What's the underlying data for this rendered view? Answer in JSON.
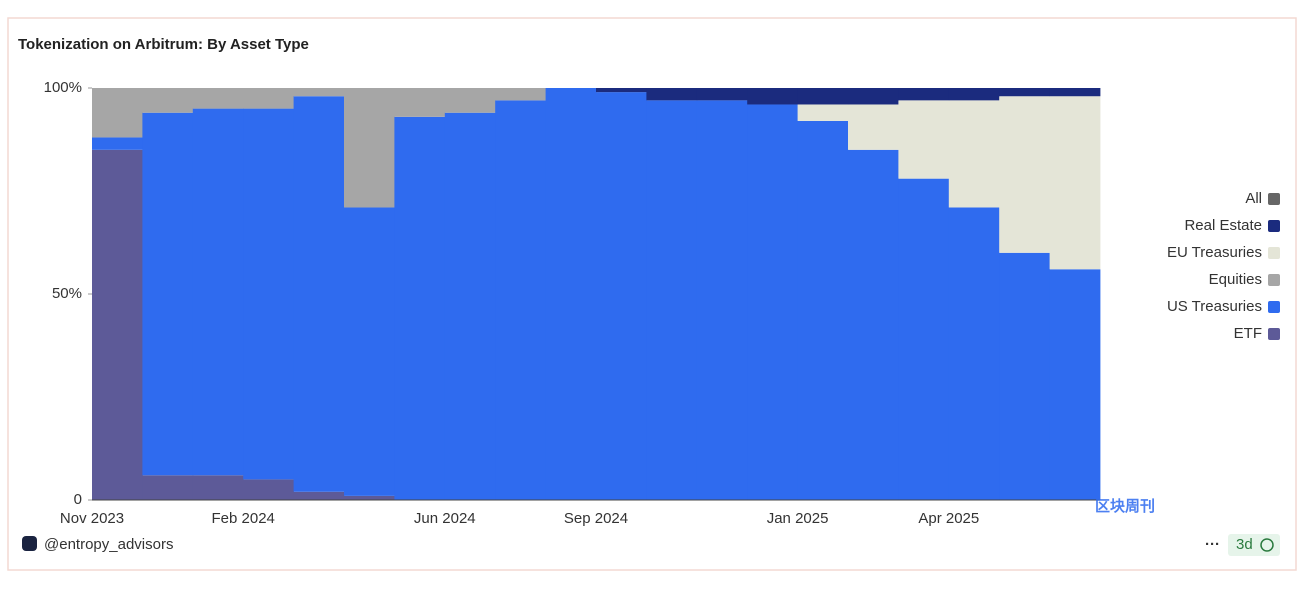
{
  "chart_data": {
    "type": "stacked-bar",
    "title": "Tokenization on Arbitrum: By Asset Type",
    "x": [
      "Nov 2023",
      "Dec 2023",
      "Jan 2024",
      "Feb 2024",
      "Mar 2024",
      "Apr 2024",
      "May 2024",
      "Jun 2024",
      "Jul 2024",
      "Aug 2024",
      "Sep 2024",
      "Oct 2024",
      "Nov 2024",
      "Dec 2024",
      "Jan 2025",
      "Feb 2025",
      "Mar 2025",
      "Apr 2025",
      "May 2025",
      "Jun 2025"
    ],
    "xticks": [
      "Nov 2023",
      "Feb 2024",
      "Jun 2024",
      "Sep 2024",
      "Jan 2025",
      "Apr 2025"
    ],
    "series": [
      {
        "name": "ETF",
        "color": "#5d5a98",
        "values": [
          85,
          6,
          6,
          5,
          2,
          1,
          0,
          0,
          0,
          0,
          0,
          0,
          0,
          0,
          0,
          0,
          0,
          0,
          0,
          0
        ]
      },
      {
        "name": "US Treasuries",
        "color": "#2f6bef",
        "values": [
          3,
          88,
          89,
          90,
          96,
          70,
          93,
          94,
          97,
          100,
          99,
          97,
          97,
          96,
          92,
          85,
          78,
          71,
          60,
          56
        ]
      },
      {
        "name": "Equities",
        "color": "#a6a6a6",
        "values": [
          12,
          6,
          5,
          5,
          2,
          29,
          7,
          6,
          3,
          0,
          0,
          0,
          0,
          0,
          0,
          0,
          0,
          0,
          0,
          0
        ]
      },
      {
        "name": "EU Treasuries",
        "color": "#e4e5d7",
        "values": [
          0,
          0,
          0,
          0,
          0,
          0,
          0,
          0,
          0,
          0,
          0,
          0,
          0,
          0,
          4,
          11,
          19,
          26,
          38,
          42
        ]
      },
      {
        "name": "Real Estate",
        "color": "#1b2b7e",
        "values": [
          0,
          0,
          0,
          0,
          0,
          0,
          0,
          0,
          0,
          0,
          1,
          3,
          3,
          4,
          4,
          4,
          3,
          3,
          2,
          2
        ]
      },
      {
        "name": "All",
        "color": "#666666",
        "values": [
          0,
          0,
          0,
          0,
          0,
          0,
          0,
          0,
          0,
          0,
          0,
          0,
          0,
          0,
          0,
          0,
          0,
          0,
          0,
          0
        ]
      }
    ],
    "ylim": [
      0,
      100
    ],
    "yticks": [
      0,
      {
        "value": 50,
        "label": "50%"
      },
      {
        "value": 100,
        "label": "100%"
      }
    ],
    "legend": "right",
    "source": "@entropy_advisors",
    "age": "3d",
    "watermark": "区块周刊"
  }
}
